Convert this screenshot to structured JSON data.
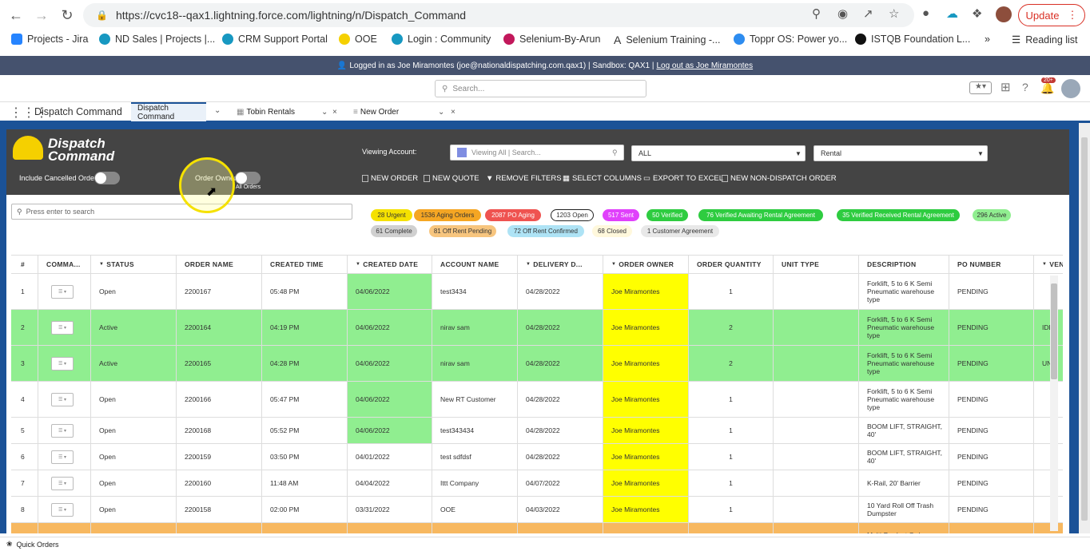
{
  "browser": {
    "url": "https://cvc18--qax1.lightning.force.com/lightning/n/Dispatch_Command",
    "update_label": "Update"
  },
  "bookmarks": [
    {
      "label": "Projects - Jira",
      "color": "#2684ff"
    },
    {
      "label": "ND Sales | Projects |...",
      "color": "#1798c1"
    },
    {
      "label": "CRM Support Portal",
      "color": "#1798c1"
    },
    {
      "label": "OOE",
      "color": "#f5d000"
    },
    {
      "label": "Login : Community",
      "color": "#1798c1"
    },
    {
      "label": "Selenium-By-Arun",
      "color": "#c2185b"
    },
    {
      "label": "Selenium Training -...",
      "color": "#333333"
    },
    {
      "label": "Toppr OS: Power yo...",
      "color": "#2d8cf0"
    },
    {
      "label": "ISTQB Foundation L...",
      "color": "#111111"
    }
  ],
  "bookmarks_more": "»",
  "reading_list": "Reading list",
  "banner": {
    "text": "Logged in as Joe Miramontes (joe@nationaldispatching.com.qax1) | Sandbox: QAX1 |",
    "logout": "Log out as Joe Miramontes"
  },
  "sf_search_placeholder": "Search...",
  "notification_count": "20+",
  "app_name": "Dispatch Command",
  "tabs": [
    {
      "label": "Dispatch Command"
    },
    {
      "label": "Tobin Rentals"
    },
    {
      "label": "New Order"
    }
  ],
  "dispatch": {
    "logo_line1": "Dispatch",
    "logo_line2": "Command",
    "include_cancelled": "Include Cancelled Orders",
    "order_owner": "Order Owner",
    "all_orders": "All Orders",
    "viewing_account": "Viewing Account:",
    "account_placeholder": "Viewing All | Search...",
    "filter_all": "ALL",
    "filter_rental": "Rental",
    "actions": [
      "NEW ORDER",
      "NEW QUOTE",
      "REMOVE FILTERS",
      "SELECT COLUMNS",
      "EXPORT TO EXCEL",
      "NEW NON-DISPATCH ORDER"
    ],
    "search_placeholder": "Press enter to search"
  },
  "pills": [
    {
      "label": "28 Urgent",
      "bg": "#f5e100",
      "fg": "#333"
    },
    {
      "label": "1536 Aging Orders",
      "bg": "#f5a623",
      "fg": "#333"
    },
    {
      "label": "2087 PO Aging",
      "bg": "#ef5350",
      "fg": "#fff"
    },
    {
      "label": "1203 Open",
      "bg": "#ffffff",
      "fg": "#333"
    },
    {
      "label": "517 Sent",
      "bg": "#e040fb",
      "fg": "#fff"
    },
    {
      "label": "50 Verified",
      "bg": "#2ecc40",
      "fg": "#fff"
    },
    {
      "label": "76 Verified Awaiting Rental Agreement",
      "bg": "#2ecc40",
      "fg": "#fff"
    },
    {
      "label": "35 Verified Received Rental Agreement",
      "bg": "#2ecc40",
      "fg": "#fff"
    },
    {
      "label": "296 Active",
      "bg": "#90ee90",
      "fg": "#333"
    },
    {
      "label": "61 Complete",
      "bg": "#d0d0d0",
      "fg": "#333"
    },
    {
      "label": "81 Off Rent Pending",
      "bg": "#f7c57e",
      "fg": "#333"
    },
    {
      "label": "72 Off Rent Confirmed",
      "bg": "#aee3f5",
      "fg": "#333"
    },
    {
      "label": "68 Closed",
      "bg": "#fff8dc",
      "fg": "#333"
    },
    {
      "label": "1 Customer Agreement",
      "bg": "#e8e8e8",
      "fg": "#333"
    }
  ],
  "columns": [
    "#",
    "COMMA...",
    "STATUS",
    "ORDER NAME",
    "CREATED TIME",
    "CREATED DATE",
    "ACCOUNT NAME",
    "DELIVERY D...",
    "ORDER OWNER",
    "ORDER QUANTITY",
    "UNIT TYPE",
    "DESCRIPTION",
    "PO NUMBER",
    "VEND"
  ],
  "rows": [
    {
      "n": "1",
      "status": "Open",
      "order": "2200167",
      "time": "05:48 PM",
      "date": "04/06/2022",
      "account": "test3434",
      "delivery": "04/28/2022",
      "owner": "Joe Miramontes",
      "qty": "1",
      "desc": "Forklift, 5 to 6 K Semi Pneumatic warehouse type",
      "po": "PENDING",
      "vend": ""
    },
    {
      "n": "2",
      "status": "Active",
      "order": "2200164",
      "time": "04:19 PM",
      "date": "04/06/2022",
      "account": "nirav sam",
      "delivery": "04/28/2022",
      "owner": "Joe Miramontes",
      "qty": "2",
      "desc": "Forklift, 5 to 6 K Semi Pneumatic warehouse type",
      "po": "PENDING",
      "vend": "IDFO"
    },
    {
      "n": "3",
      "status": "Active",
      "order": "2200165",
      "time": "04:28 PM",
      "date": "04/06/2022",
      "account": "nirav sam",
      "delivery": "04/28/2022",
      "owner": "Joe Miramontes",
      "qty": "2",
      "desc": "Forklift, 5 to 6 K Semi Pneumatic warehouse type",
      "po": "PENDING",
      "vend": "UNI"
    },
    {
      "n": "4",
      "status": "Open",
      "order": "2200166",
      "time": "05:47 PM",
      "date": "04/06/2022",
      "account": "New RT Customer",
      "delivery": "04/28/2022",
      "owner": "Joe Miramontes",
      "qty": "1",
      "desc": "Forklift, 5 to 6 K Semi Pneumatic warehouse type",
      "po": "PENDING",
      "vend": ""
    },
    {
      "n": "5",
      "status": "Open",
      "order": "2200168",
      "time": "05:52 PM",
      "date": "04/06/2022",
      "account": "test343434",
      "delivery": "04/28/2022",
      "owner": "Joe Miramontes",
      "qty": "1",
      "desc": "BOOM LIFT, STRAIGHT, 40'",
      "po": "PENDING",
      "vend": ""
    },
    {
      "n": "6",
      "status": "Open",
      "order": "2200159",
      "time": "03:50 PM",
      "date": "04/01/2022",
      "account": "test sdfdsf",
      "delivery": "04/28/2022",
      "owner": "Joe Miramontes",
      "qty": "1",
      "desc": "BOOM LIFT, STRAIGHT, 40'",
      "po": "PENDING",
      "vend": ""
    },
    {
      "n": "7",
      "status": "Open",
      "order": "2200160",
      "time": "11:48 AM",
      "date": "04/04/2022",
      "account": "Ittt Company",
      "delivery": "04/07/2022",
      "owner": "Joe Miramontes",
      "qty": "1",
      "desc": "K-Rail, 20' Barrier",
      "po": "PENDING",
      "vend": ""
    },
    {
      "n": "8",
      "status": "Open",
      "order": "2200158",
      "time": "02:00 PM",
      "date": "03/31/2022",
      "account": "OOE",
      "delivery": "04/03/2022",
      "owner": "Joe Miramontes",
      "qty": "1",
      "desc": "10 Yard Roll Off Trash Dumpster",
      "po": "PENDING",
      "vend": ""
    },
    {
      "n": "",
      "status": "",
      "order": "",
      "time": "",
      "date": "",
      "account": "",
      "delivery": "",
      "owner": "",
      "qty": "",
      "desc": "Multi-Product Order",
      "po": "",
      "vend": ""
    }
  ],
  "footer_label": "Quick Orders"
}
